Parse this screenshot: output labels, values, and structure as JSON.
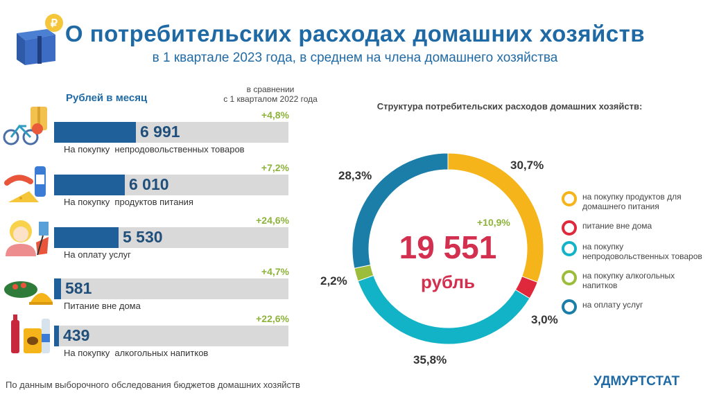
{
  "header": {
    "title": "О потребительских расходах домашних хозяйств",
    "subtitle": "в 1 квартале 2023 года, в среднем на члена домашнего хозяйства"
  },
  "left_panel": {
    "unit_header": "Рублей в месяц",
    "comparison_header_line1": "в сравнении",
    "comparison_header_line2": "с 1 кварталом 2022 года"
  },
  "right_panel": {
    "structure_title": "Структура потребительских расходов домашних хозяйств:",
    "total_value": "19 551",
    "total_unit": "рубль",
    "total_change": "+10,9%"
  },
  "footer": {
    "source": "По данным выборочного обследования бюджетов домашних хозяйств",
    "brand": "УДМУРТСТАТ"
  },
  "chart_data": [
    {
      "type": "bar",
      "orientation": "horizontal",
      "unit": "Рублей в месяц",
      "xlim": [
        0,
        20000
      ],
      "items": [
        {
          "label": "На покупку  непродовольственных товаров",
          "value": 6991,
          "value_text": "6 991",
          "change": "+4,8%",
          "icon": "bicycle-clothes-icon"
        },
        {
          "label": "На покупку  продуктов питания",
          "value": 6010,
          "value_text": "6 010",
          "change": "+7,2%",
          "icon": "food-products-icon"
        },
        {
          "label": "На оплату услуг",
          "value": 5530,
          "value_text": "5 530",
          "change": "+24,6%",
          "icon": "services-person-icon"
        },
        {
          "label": "Питание вне дома",
          "value": 581,
          "value_text": "581",
          "change": "+4,7%",
          "icon": "dish-cloche-icon"
        },
        {
          "label": "На покупку  алкогольных напитков",
          "value": 439,
          "value_text": "439",
          "change": "+22,6%",
          "icon": "bottles-icon"
        }
      ]
    },
    {
      "type": "pie",
      "donut": true,
      "slices": [
        {
          "label": "на покупку продуктов для домашнего питания",
          "value": 30.7,
          "text": "30,7%",
          "color": "#f5b41a"
        },
        {
          "label": "питание вне дома",
          "value": 3.0,
          "text": "3,0%",
          "color": "#e0283c"
        },
        {
          "label": "на покупку непродовольственных  товаров",
          "value": 35.8,
          "text": "35,8%",
          "color": "#12b3c6"
        },
        {
          "label": "на покупку  алкогольных напитков",
          "value": 2.2,
          "text": "2,2%",
          "color": "#9cbd3c"
        },
        {
          "label": "на оплату услуг",
          "value": 28.3,
          "text": "28,3%",
          "color": "#1b7ea8"
        }
      ]
    }
  ]
}
